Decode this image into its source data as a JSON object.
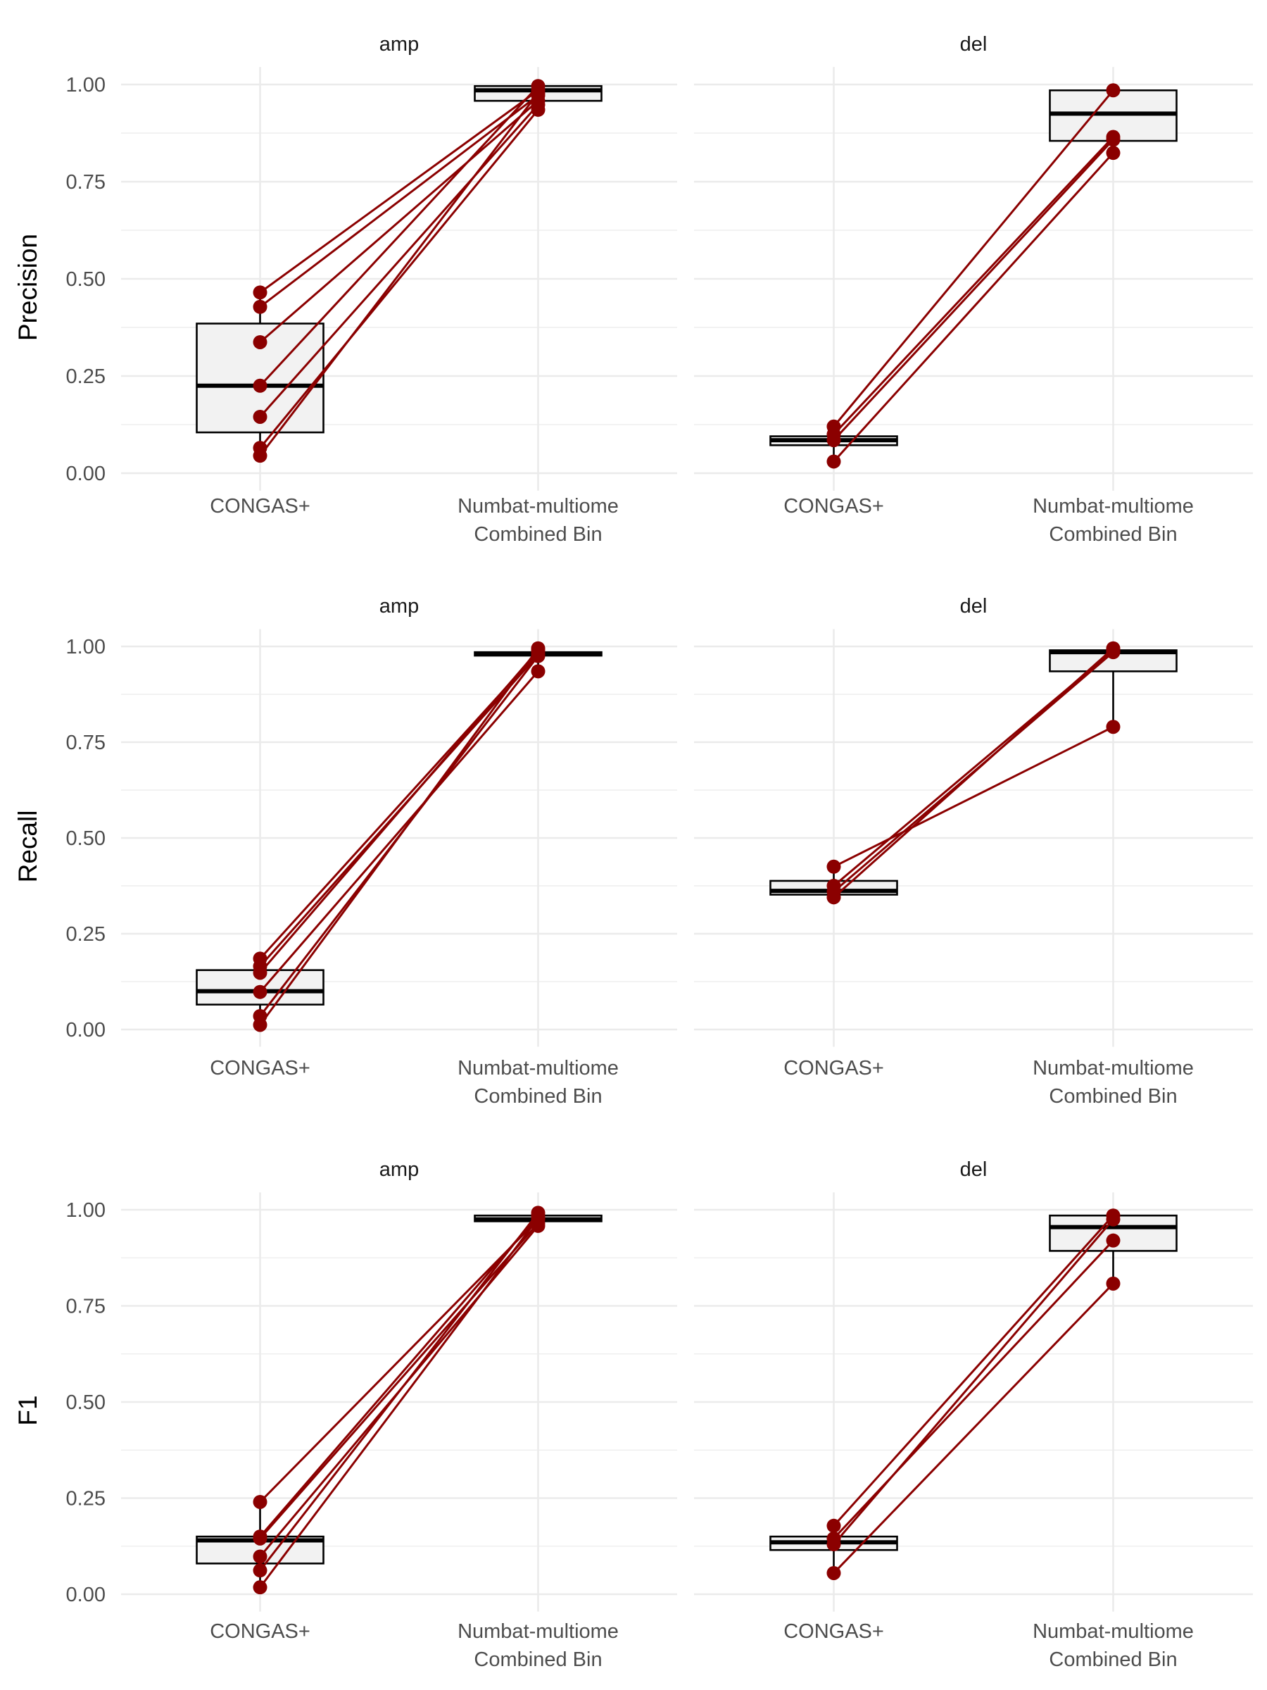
{
  "colors": {
    "points": "#8B0000",
    "box_fill": "#F2F2F2",
    "grid": "#EBEBEB",
    "box_stroke": "#000000"
  },
  "chart_data": {
    "type": "box-paired-points",
    "grid": true,
    "legend": "none",
    "categories": [
      "CONGAS+",
      "Numbat-multiome\nCombined Bin"
    ],
    "facet_columns": [
      "amp",
      "del"
    ],
    "ylim": [
      0,
      1
    ],
    "yticks": [
      0.0,
      0.25,
      0.5,
      0.75,
      1.0
    ],
    "ytick_labels": [
      "0.00",
      "0.25",
      "0.50",
      "0.75",
      "1.00"
    ],
    "panels": [
      {
        "metric": "Precision",
        "facet": "amp",
        "box": [
          {
            "min": 0.045,
            "q1": 0.105,
            "median": 0.225,
            "q3": 0.385,
            "max": 0.465
          },
          {
            "min": 0.932,
            "q1": 0.958,
            "median": 0.985,
            "q3": 0.996,
            "max": 1.0
          }
        ],
        "pairs": [
          [
            0.465,
            0.985
          ],
          [
            0.428,
            0.972
          ],
          [
            0.337,
            0.958
          ],
          [
            0.225,
            0.996
          ],
          [
            0.145,
            0.948
          ],
          [
            0.065,
            0.935
          ],
          [
            0.045,
            0.978
          ]
        ]
      },
      {
        "metric": "Precision",
        "facet": "del",
        "box": [
          {
            "min": 0.03,
            "q1": 0.072,
            "median": 0.085,
            "q3": 0.095,
            "max": 0.12
          },
          {
            "min": 0.824,
            "q1": 0.855,
            "median": 0.925,
            "q3": 0.985,
            "max": 0.985
          }
        ],
        "pairs": [
          [
            0.12,
            0.985
          ],
          [
            0.1,
            0.865
          ],
          [
            0.085,
            0.858
          ],
          [
            0.03,
            0.824
          ]
        ]
      },
      {
        "metric": "Recall",
        "facet": "amp",
        "box": [
          {
            "min": 0.012,
            "q1": 0.065,
            "median": 0.1,
            "q3": 0.155,
            "max": 0.185
          },
          {
            "min": 0.935,
            "q1": 0.976,
            "median": 0.98,
            "q3": 0.985,
            "max": 0.995
          }
        ],
        "pairs": [
          [
            0.185,
            0.985
          ],
          [
            0.165,
            0.978
          ],
          [
            0.148,
            0.99
          ],
          [
            0.098,
            0.935
          ],
          [
            0.035,
            0.975
          ],
          [
            0.012,
            0.995
          ]
        ]
      },
      {
        "metric": "Recall",
        "facet": "del",
        "box": [
          {
            "min": 0.345,
            "q1": 0.352,
            "median": 0.362,
            "q3": 0.388,
            "max": 0.425
          },
          {
            "min": 0.79,
            "q1": 0.935,
            "median": 0.985,
            "q3": 0.99,
            "max": 0.995
          }
        ],
        "pairs": [
          [
            0.425,
            0.79
          ],
          [
            0.375,
            0.99
          ],
          [
            0.36,
            0.985
          ],
          [
            0.345,
            0.995
          ]
        ]
      },
      {
        "metric": "F1",
        "facet": "amp",
        "box": [
          {
            "min": 0.018,
            "q1": 0.08,
            "median": 0.14,
            "q3": 0.15,
            "max": 0.24
          },
          {
            "min": 0.958,
            "q1": 0.97,
            "median": 0.975,
            "q3": 0.985,
            "max": 0.992
          }
        ],
        "pairs": [
          [
            0.24,
            0.975
          ],
          [
            0.15,
            0.985
          ],
          [
            0.145,
            0.965
          ],
          [
            0.098,
            0.958
          ],
          [
            0.062,
            0.992
          ],
          [
            0.018,
            0.978
          ]
        ]
      },
      {
        "metric": "F1",
        "facet": "del",
        "box": [
          {
            "min": 0.055,
            "q1": 0.115,
            "median": 0.135,
            "q3": 0.15,
            "max": 0.178
          },
          {
            "min": 0.808,
            "q1": 0.893,
            "median": 0.955,
            "q3": 0.985,
            "max": 0.985
          }
        ],
        "pairs": [
          [
            0.178,
            0.985
          ],
          [
            0.145,
            0.92
          ],
          [
            0.13,
            0.975
          ],
          [
            0.055,
            0.808
          ]
        ]
      }
    ]
  }
}
